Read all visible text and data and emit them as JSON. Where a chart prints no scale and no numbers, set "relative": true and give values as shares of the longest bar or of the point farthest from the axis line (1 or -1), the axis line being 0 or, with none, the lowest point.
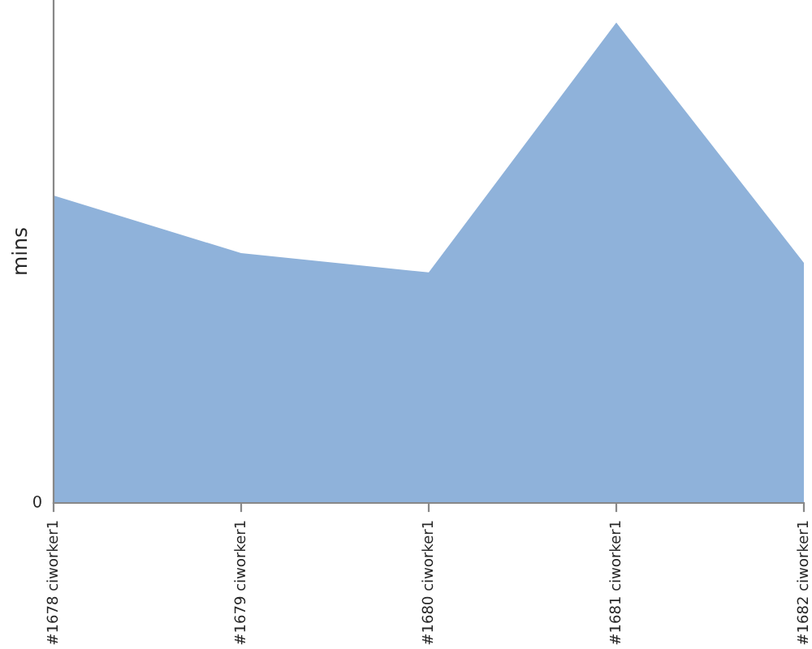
{
  "chart_data": {
    "type": "area",
    "ylabel": "mins",
    "relative": true,
    "categories": [
      "#1678 ciworker1",
      "#1679 ciworker1",
      "#1680 ciworker1",
      "#1681 ciworker1",
      "#1682 ciworker1"
    ],
    "series": [
      {
        "color": "#8fb2da",
        "values": [
          0.64,
          0.52,
          0.48,
          1,
          0.5
        ]
      }
    ],
    "annotations": [
      "0"
    ]
  }
}
